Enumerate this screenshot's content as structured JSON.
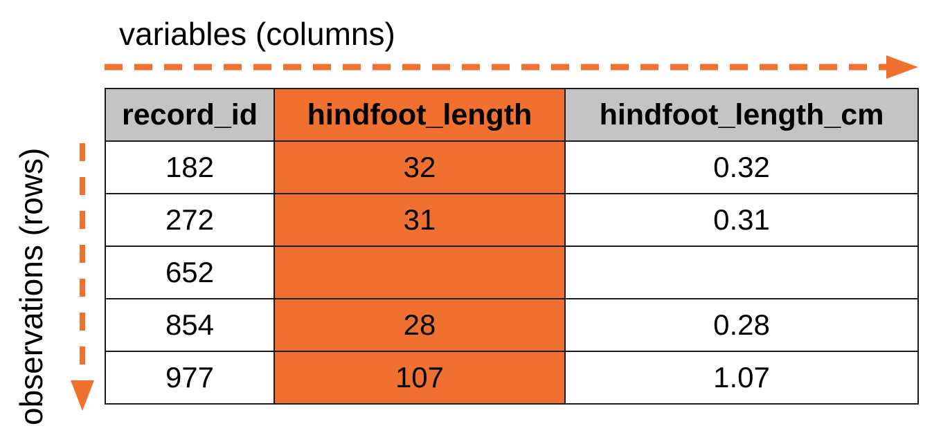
{
  "labels": {
    "columns_axis": "variables (columns)",
    "rows_axis": "observations (rows)"
  },
  "colors": {
    "accent": "#f07030",
    "header_bg": "#c4c4c4",
    "border": "#1a1a1a"
  },
  "table": {
    "headers": [
      "record_id",
      "hindfoot_length",
      "hindfoot_length_cm"
    ],
    "highlighted_column": "hindfoot_length",
    "rows": [
      [
        "182",
        "32",
        "0.32"
      ],
      [
        "272",
        "31",
        "0.31"
      ],
      [
        "652",
        "",
        ""
      ],
      [
        "854",
        "28",
        "0.28"
      ],
      [
        "977",
        "107",
        "1.07"
      ]
    ]
  }
}
